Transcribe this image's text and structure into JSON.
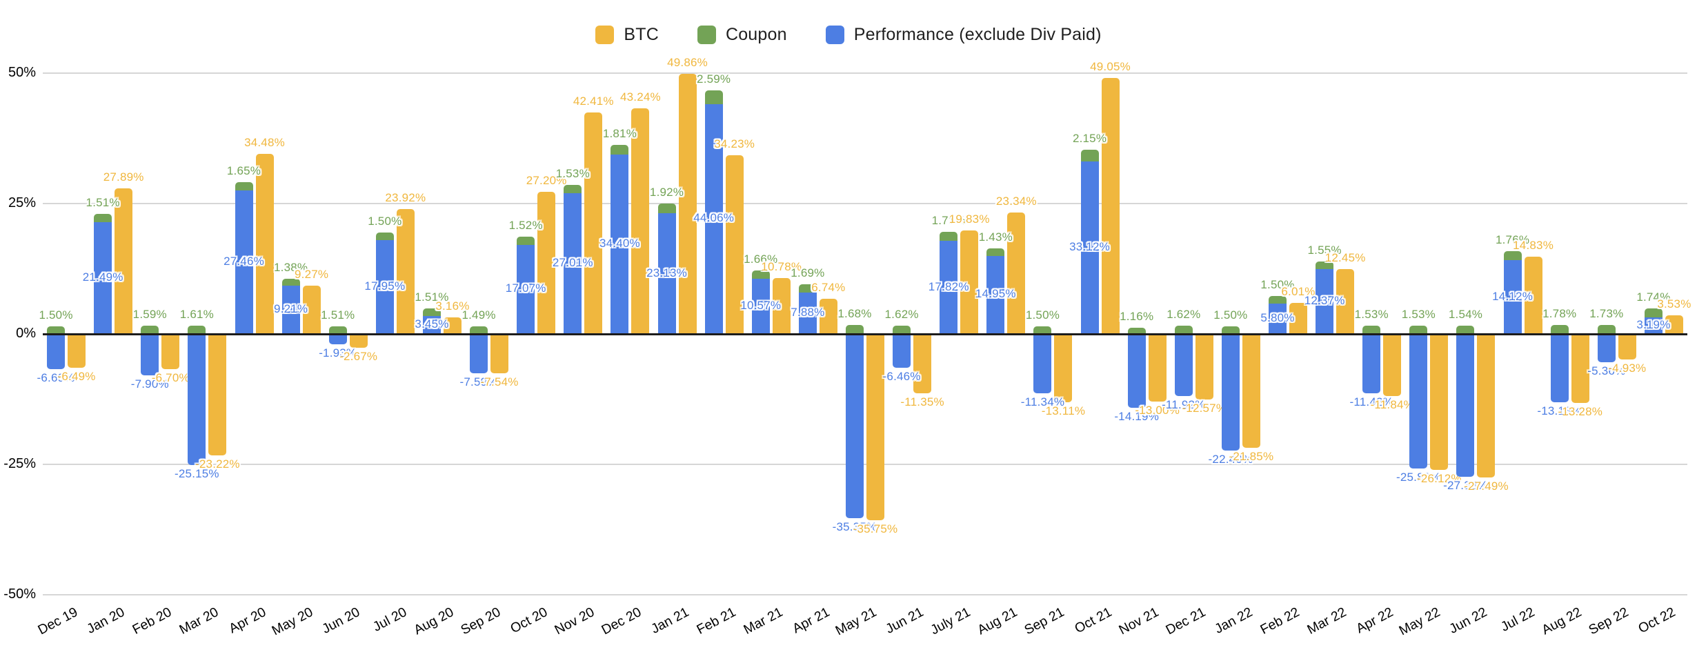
{
  "chart_data": {
    "type": "bar",
    "title": "",
    "xlabel": "",
    "ylabel": "",
    "categories": [
      "Dec 19",
      "Jan 20",
      "Feb 20",
      "Mar 20",
      "Apr 20",
      "May 20",
      "Jun 20",
      "Jul 20",
      "Aug 20",
      "Sep 20",
      "Oct 20",
      "Nov 20",
      "Dec 20",
      "Jan 21",
      "Feb 21",
      "Mar 21",
      "Apr 21",
      "May 21",
      "Jun 21",
      "July 21",
      "Aug 21",
      "Sep 21",
      "Oct 21",
      "Nov 21",
      "Dec 21",
      "Jan 22",
      "Feb 22",
      "Mar 22",
      "Apr 22",
      "May 22",
      "Jun 22",
      "Jul 22",
      "Aug 22",
      "Sep 22",
      "Oct 22"
    ],
    "series": [
      {
        "name": "BTC",
        "color": "#F0B73E",
        "role": "standalone-bar",
        "values": [
          -6.49,
          27.89,
          -6.7,
          -23.22,
          34.48,
          9.27,
          -2.67,
          23.92,
          3.16,
          -7.54,
          27.2,
          42.41,
          43.24,
          49.86,
          34.23,
          10.78,
          6.74,
          -35.75,
          -11.35,
          19.83,
          23.34,
          -13.11,
          49.05,
          -13.0,
          -12.57,
          -21.85,
          6.01,
          12.45,
          -11.84,
          -26.12,
          -27.49,
          14.83,
          -13.28,
          -4.93,
          3.53
        ]
      },
      {
        "name": "Coupon",
        "color": "#73A356",
        "role": "stacked-top-segment",
        "values": [
          1.5,
          1.51,
          1.59,
          1.61,
          1.65,
          1.38,
          1.51,
          1.5,
          1.51,
          1.49,
          1.52,
          1.53,
          1.81,
          1.92,
          2.59,
          1.66,
          1.69,
          1.68,
          1.62,
          1.71,
          1.43,
          1.5,
          2.15,
          1.16,
          1.62,
          1.5,
          1.5,
          1.55,
          1.53,
          1.53,
          1.54,
          1.76,
          1.78,
          1.73,
          1.74
        ]
      },
      {
        "name": "Performance (exclude Div Paid)",
        "color": "#4D7EE3",
        "role": "stacked-base-segment",
        "values": [
          -6.69,
          21.49,
          -7.9,
          -25.15,
          27.46,
          9.21,
          -1.93,
          17.95,
          3.45,
          -7.59,
          17.07,
          27.01,
          34.4,
          23.13,
          44.06,
          10.57,
          7.88,
          -35.35,
          -6.46,
          17.82,
          14.95,
          -11.34,
          33.12,
          -14.19,
          -11.92,
          -22.4,
          5.8,
          12.37,
          -11.42,
          -25.83,
          -27.38,
          14.12,
          -13.13,
          -5.36,
          3.19
        ]
      }
    ],
    "value_label_format": "0.00%",
    "y_ticks": [
      "50%",
      "25%",
      "0%",
      "-25%",
      "-50%"
    ],
    "ylim": [
      -50,
      50
    ],
    "grid": true,
    "legend_position": "top-center",
    "background_color": "#ffffff",
    "gridline_color": "#d6d6d6",
    "zero_line_color": "#1c1c1c",
    "axis_text_color": "#000000"
  }
}
